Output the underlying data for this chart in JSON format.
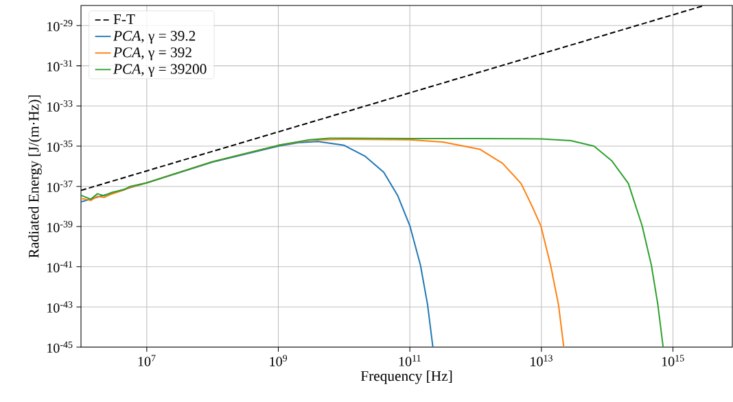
{
  "chart_data": {
    "type": "line",
    "xlabel": "Frequency [Hz]",
    "ylabel": "Radiated Energy [J/(m·Hz)]",
    "log": "xy",
    "grid": true,
    "legend": "top left",
    "xlim": [
      1000000.0,
      8000000000000000.0
    ],
    "ylim": [
      1e-45,
      1e-28
    ],
    "xticks": [
      {
        "value": 10000000.0,
        "label": "10$^{7}$"
      },
      {
        "value": 1000000000.0,
        "label": "10$^{9}$"
      },
      {
        "value": 100000000000.0,
        "label": "10$^{11}$"
      },
      {
        "value": 10000000000000.0,
        "label": "10$^{13}$"
      },
      {
        "value": 1000000000000000.0,
        "label": "10$^{15}$"
      }
    ],
    "yticks": [
      {
        "value": 1e-45,
        "label": "10$^{-45}$"
      },
      {
        "value": 1e-43,
        "label": "10$^{-43}$"
      },
      {
        "value": 1e-41,
        "label": "10$^{-41}$"
      },
      {
        "value": 1e-39,
        "label": "10$^{-39}$"
      },
      {
        "value": 1e-37,
        "label": "10$^{-37}$"
      },
      {
        "value": 1e-35,
        "label": "10$^{-35}$"
      },
      {
        "value": 1e-33,
        "label": "10$^{-33}$"
      },
      {
        "value": 1e-31,
        "label": "10$^{-31}$"
      },
      {
        "value": 1e-29,
        "label": "10$^{-29}$"
      }
    ],
    "series": [
      {
        "name": "F-T",
        "color": "#000000",
        "line_style": "dashed",
        "x": [
          1000000.0,
          3000000000000000.0
        ],
        "values": [
          6.3e-38,
          1e-28
        ]
      },
      {
        "name": "*PCA*, γ = 39.2",
        "color": "#1f77b4",
        "x": [
          1000000.0,
          10000000.0,
          100000000.0,
          1000000000.0,
          2000000000.0,
          4000000000.0,
          10000000000.0,
          21000000000.0,
          40000000000.0,
          65000000000.0,
          100000000000.0,
          145000000000.0,
          186000000000.0,
          224000000000.0
        ],
        "values": [
          1.7e-38,
          1.5e-37,
          1.6e-36,
          1e-35,
          1.5e-35,
          1.7e-35,
          1.1e-35,
          3.1e-36,
          5.1e-37,
          3.6e-38,
          1.1e-39,
          1.2e-41,
          1.3e-43,
          1e-45
        ]
      },
      {
        "name": "*PCA*, γ = 392",
        "color": "#ff7f0e",
        "x": [
          1000000.0,
          1410000.0,
          1780000.0,
          2240000.0,
          2950000.0,
          4470000.0,
          5620000.0,
          10000000.0,
          100000000.0,
          1000000000.0,
          3000000000.0,
          10000000000.0,
          100000000000.0,
          316000000000.0,
          1150000000000.0,
          2570000000000.0,
          4900000000000.0,
          7200000000000.0,
          9800000000000.0,
          13800000000000.0,
          18200000000000.0,
          21900000000000.0
        ],
        "values": [
          2.5e-38,
          2e-38,
          3.2e-38,
          2.8e-38,
          4.2e-38,
          6.5e-38,
          9e-38,
          1.5e-37,
          1.7e-36,
          1.1e-35,
          2e-35,
          2.2e-35,
          2.1e-35,
          1.6e-35,
          7.1e-36,
          1.4e-36,
          1.4e-37,
          1.05e-38,
          1.1e-39,
          1.2e-41,
          1.3e-43,
          1e-45
        ]
      },
      {
        "name": "*PCA*, γ = 39200",
        "color": "#2ca02c",
        "x": [
          1000000.0,
          1410000.0,
          1780000.0,
          2240000.0,
          2950000.0,
          4470000.0,
          5620000.0,
          10000000.0,
          100000000.0,
          1000000000.0,
          3000000000.0,
          6000000000.0,
          10000000000.0,
          100000000000.0,
          1000000000000.0,
          10000000000000.0,
          28000000000000.0,
          63000000000000.0,
          117000000000000.0,
          210000000000000.0,
          340000000000000.0,
          470000000000000.0,
          590000000000000.0,
          710000000000000.0
        ],
        "values": [
          3.6e-38,
          2.3e-38,
          4.3e-38,
          3.4e-38,
          5e-38,
          6.8e-38,
          1e-37,
          1.5e-37,
          1.7e-36,
          1.1e-35,
          2.1e-35,
          2.5e-35,
          2.5e-35,
          2.4e-35,
          2.4e-35,
          2.3e-35,
          1.9e-35,
          1e-35,
          1.9e-36,
          1.4e-37,
          1.1e-39,
          1.2e-41,
          1.3e-43,
          1e-45
        ]
      }
    ]
  }
}
